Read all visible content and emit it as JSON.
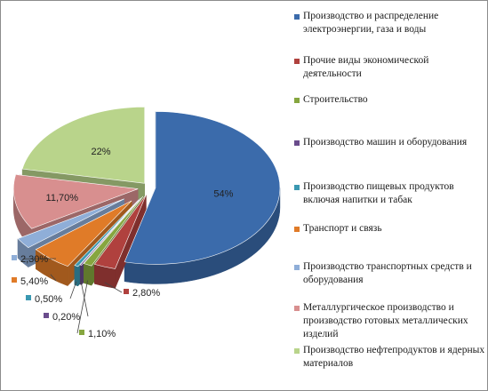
{
  "chart_data": {
    "type": "pie",
    "title": "",
    "legend_position": "right",
    "slices": [
      {
        "label": "Производство и распределение электроэнергии, газа и воды",
        "value": 54,
        "display": "54%",
        "color": "#3b6bab"
      },
      {
        "label": "Прочие виды экономической деятельности",
        "value": 2.8,
        "display": "2,80%",
        "color": "#b0413e"
      },
      {
        "label": "Строительство",
        "value": 1.1,
        "display": "1,10%",
        "color": "#86a63f"
      },
      {
        "label": "Производство машин и оборудования",
        "value": 0.2,
        "display": "0,20%",
        "color": "#6a4c8c"
      },
      {
        "label": "Производство пищевых продуктов включая напитки и табак",
        "value": 0.5,
        "display": "0,50%",
        "color": "#3a98b1"
      },
      {
        "label": "Транспорт и связь",
        "value": 5.4,
        "display": "5,40%",
        "color": "#e07b28"
      },
      {
        "label": "Производство транспортных средств и оборудования",
        "value": 2.3,
        "display": "2,30%",
        "color": "#8faed8"
      },
      {
        "label": "Металлургическое производство и производство готовых металлических изделий",
        "value": 11.7,
        "display": "11,70%",
        "color": "#d88f8f"
      },
      {
        "label": "Производство нефтепродуктов и ядерных материалов",
        "value": 22,
        "display": "22%",
        "color": "#b9d48b"
      }
    ]
  }
}
